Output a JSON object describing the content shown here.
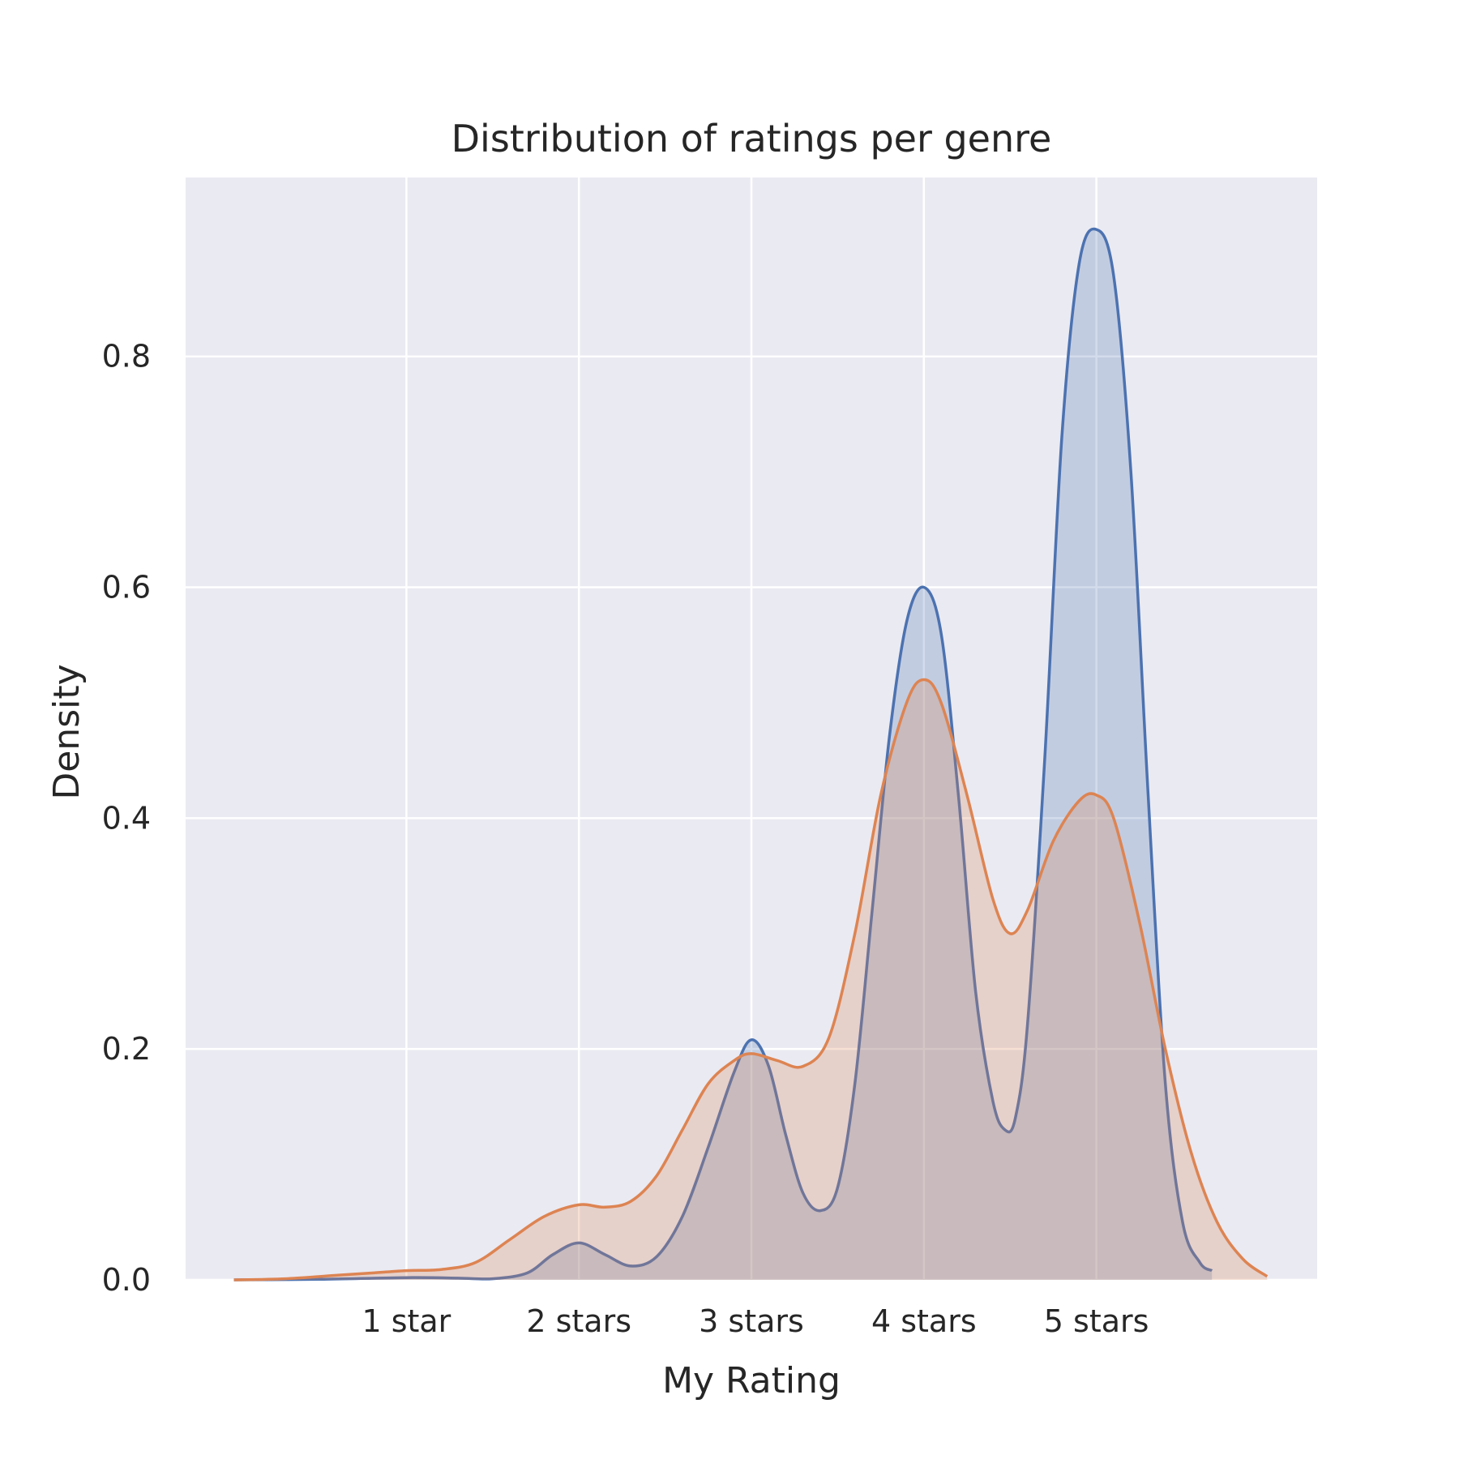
{
  "chart_data": {
    "type": "area",
    "title": "Distribution of ratings per genre",
    "xlabel": "My Rating",
    "ylabel": "Density",
    "x_ticks": [
      {
        "value": 1,
        "label": "1 star"
      },
      {
        "value": 2,
        "label": "2 stars"
      },
      {
        "value": 3,
        "label": "3 stars"
      },
      {
        "value": 4,
        "label": "4 stars"
      },
      {
        "value": 5,
        "label": "5 stars"
      }
    ],
    "y_ticks": [
      {
        "value": 0.0,
        "label": "0.0"
      },
      {
        "value": 0.2,
        "label": "0.2"
      },
      {
        "value": 0.4,
        "label": "0.4"
      },
      {
        "value": 0.6,
        "label": "0.6"
      },
      {
        "value": 0.8,
        "label": "0.8"
      }
    ],
    "xlim": [
      -0.28,
      6.28
    ],
    "ylim": [
      0,
      0.955
    ],
    "grid": true,
    "series": [
      {
        "color": "#4c72b0",
        "fill_opacity": 0.25,
        "points": [
          [
            0.0,
            0.0
          ],
          [
            0.5,
            0.0005
          ],
          [
            1.0,
            0.002
          ],
          [
            1.3,
            0.0015
          ],
          [
            1.5,
            0.001
          ],
          [
            1.7,
            0.006
          ],
          [
            1.85,
            0.022
          ],
          [
            2.0,
            0.032
          ],
          [
            2.15,
            0.022
          ],
          [
            2.3,
            0.012
          ],
          [
            2.45,
            0.02
          ],
          [
            2.6,
            0.055
          ],
          [
            2.75,
            0.115
          ],
          [
            2.9,
            0.18
          ],
          [
            3.0,
            0.208
          ],
          [
            3.1,
            0.185
          ],
          [
            3.2,
            0.125
          ],
          [
            3.3,
            0.075
          ],
          [
            3.4,
            0.06
          ],
          [
            3.5,
            0.08
          ],
          [
            3.6,
            0.17
          ],
          [
            3.7,
            0.32
          ],
          [
            3.8,
            0.47
          ],
          [
            3.9,
            0.57
          ],
          [
            4.0,
            0.6
          ],
          [
            4.1,
            0.56
          ],
          [
            4.2,
            0.42
          ],
          [
            4.3,
            0.25
          ],
          [
            4.4,
            0.155
          ],
          [
            4.47,
            0.13
          ],
          [
            4.53,
            0.14
          ],
          [
            4.6,
            0.22
          ],
          [
            4.7,
            0.45
          ],
          [
            4.8,
            0.73
          ],
          [
            4.9,
            0.88
          ],
          [
            5.0,
            0.91
          ],
          [
            5.1,
            0.87
          ],
          [
            5.2,
            0.7
          ],
          [
            5.3,
            0.42
          ],
          [
            5.4,
            0.17
          ],
          [
            5.5,
            0.05
          ],
          [
            5.6,
            0.015
          ],
          [
            5.67,
            0.008
          ]
        ]
      },
      {
        "color": "#dd8452",
        "fill_opacity": 0.25,
        "points": [
          [
            0.0,
            0.0
          ],
          [
            0.3,
            0.001
          ],
          [
            0.6,
            0.004
          ],
          [
            0.8,
            0.006
          ],
          [
            1.0,
            0.008
          ],
          [
            1.2,
            0.009
          ],
          [
            1.4,
            0.015
          ],
          [
            1.6,
            0.035
          ],
          [
            1.8,
            0.055
          ],
          [
            2.0,
            0.065
          ],
          [
            2.15,
            0.063
          ],
          [
            2.3,
            0.068
          ],
          [
            2.45,
            0.09
          ],
          [
            2.6,
            0.13
          ],
          [
            2.75,
            0.17
          ],
          [
            2.9,
            0.19
          ],
          [
            3.0,
            0.196
          ],
          [
            3.15,
            0.19
          ],
          [
            3.3,
            0.185
          ],
          [
            3.45,
            0.21
          ],
          [
            3.6,
            0.3
          ],
          [
            3.75,
            0.42
          ],
          [
            3.9,
            0.5
          ],
          [
            4.0,
            0.52
          ],
          [
            4.1,
            0.5
          ],
          [
            4.25,
            0.42
          ],
          [
            4.4,
            0.33
          ],
          [
            4.5,
            0.3
          ],
          [
            4.6,
            0.32
          ],
          [
            4.75,
            0.38
          ],
          [
            4.9,
            0.415
          ],
          [
            5.0,
            0.42
          ],
          [
            5.1,
            0.4
          ],
          [
            5.25,
            0.31
          ],
          [
            5.4,
            0.2
          ],
          [
            5.55,
            0.11
          ],
          [
            5.7,
            0.05
          ],
          [
            5.85,
            0.018
          ],
          [
            5.99,
            0.003
          ]
        ]
      }
    ]
  }
}
